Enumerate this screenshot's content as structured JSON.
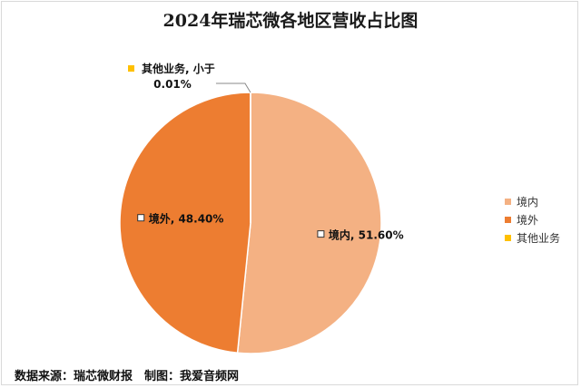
{
  "chart_data": {
    "type": "pie",
    "title": "2024年瑞芯微各地区营收占比图",
    "slices": [
      {
        "name": "境内",
        "value": 51.6,
        "label": "境内, 51.60%",
        "color": "#f4b183"
      },
      {
        "name": "境外",
        "value": 48.4,
        "label": "境外, 48.40%",
        "color": "#ed7d31"
      },
      {
        "name": "其他业务",
        "value": 0.01,
        "label_line1": "其他业务, 小于",
        "label_line2": "0.01%",
        "color": "#ffc000"
      }
    ],
    "legend": {
      "placement": "right",
      "items": [
        "境内",
        "境外",
        "其他业务"
      ]
    }
  },
  "source_text": "数据来源：瑞芯微财报　制图：我爱音频网"
}
